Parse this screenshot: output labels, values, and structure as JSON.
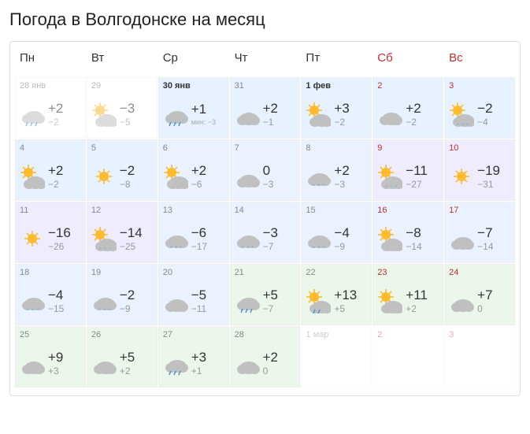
{
  "title": "Погода в Волгодонске на месяц",
  "day_headers": [
    "Пн",
    "Вт",
    "Ср",
    "Чт",
    "Пт",
    "Сб",
    "Вс"
  ],
  "days": [
    {
      "date": "28 янв",
      "icon": "rain-cloud",
      "high": "+2",
      "low": "−2",
      "tint": "tint-none",
      "past": true,
      "weekend": false,
      "bold": false,
      "note": ""
    },
    {
      "date": "29",
      "icon": "partly",
      "high": "−3",
      "low": "−5",
      "tint": "tint-none",
      "past": true,
      "weekend": false,
      "bold": false,
      "note": ""
    },
    {
      "date": "30 янв",
      "icon": "rain-cloud",
      "high": "+1",
      "low": "",
      "tint": "tint-blue1",
      "past": false,
      "weekend": false,
      "bold": true,
      "note": "мин: −3"
    },
    {
      "date": "31",
      "icon": "cloud",
      "high": "+2",
      "low": "−1",
      "tint": "tint-blue1",
      "past": false,
      "weekend": false,
      "bold": false,
      "note": ""
    },
    {
      "date": "1 фев",
      "icon": "partly",
      "high": "+3",
      "low": "−2",
      "tint": "tint-blue1",
      "past": false,
      "weekend": false,
      "bold": true,
      "note": ""
    },
    {
      "date": "2",
      "icon": "cloud",
      "high": "+2",
      "low": "−2",
      "tint": "tint-blue1",
      "past": false,
      "weekend": true,
      "bold": false,
      "note": ""
    },
    {
      "date": "3",
      "icon": "sun-snow",
      "high": "−2",
      "low": "−4",
      "tint": "tint-blue1",
      "past": false,
      "weekend": true,
      "bold": false,
      "note": ""
    },
    {
      "date": "4",
      "icon": "partly",
      "high": "+2",
      "low": "−2",
      "tint": "tint-blue1",
      "past": false,
      "weekend": false,
      "bold": false,
      "note": ""
    },
    {
      "date": "5",
      "icon": "sun",
      "high": "−2",
      "low": "−8",
      "tint": "tint-blue1",
      "past": false,
      "weekend": false,
      "bold": false,
      "note": ""
    },
    {
      "date": "6",
      "icon": "partly",
      "high": "+2",
      "low": "−6",
      "tint": "tint-blue2",
      "past": false,
      "weekend": false,
      "bold": false,
      "note": ""
    },
    {
      "date": "7",
      "icon": "cloud",
      "high": "0",
      "low": "−3",
      "tint": "tint-blue2",
      "past": false,
      "weekend": false,
      "bold": false,
      "note": ""
    },
    {
      "date": "8",
      "icon": "snow-cloud",
      "high": "+2",
      "low": "−3",
      "tint": "tint-blue2",
      "past": false,
      "weekend": false,
      "bold": false,
      "note": ""
    },
    {
      "date": "9",
      "icon": "sun-snow",
      "high": "−11",
      "low": "−27",
      "tint": "tint-lav",
      "past": false,
      "weekend": true,
      "bold": false,
      "note": ""
    },
    {
      "date": "10",
      "icon": "sun",
      "high": "−19",
      "low": "−31",
      "tint": "tint-lav",
      "past": false,
      "weekend": true,
      "bold": false,
      "note": ""
    },
    {
      "date": "11",
      "icon": "sun",
      "high": "−16",
      "low": "−26",
      "tint": "tint-lav",
      "past": false,
      "weekend": false,
      "bold": false,
      "note": ""
    },
    {
      "date": "12",
      "icon": "sun-snow",
      "high": "−14",
      "low": "−25",
      "tint": "tint-lav",
      "past": false,
      "weekend": false,
      "bold": false,
      "note": ""
    },
    {
      "date": "13",
      "icon": "snow-cloud",
      "high": "−6",
      "low": "−17",
      "tint": "tint-blue2",
      "past": false,
      "weekend": false,
      "bold": false,
      "note": ""
    },
    {
      "date": "14",
      "icon": "snow-cloud",
      "high": "−3",
      "low": "−7",
      "tint": "tint-blue2",
      "past": false,
      "weekend": false,
      "bold": false,
      "note": ""
    },
    {
      "date": "15",
      "icon": "snow-cloud",
      "high": "−4",
      "low": "−9",
      "tint": "tint-blue2",
      "past": false,
      "weekend": false,
      "bold": false,
      "note": ""
    },
    {
      "date": "16",
      "icon": "partly",
      "high": "−8",
      "low": "−14",
      "tint": "tint-blue2",
      "past": false,
      "weekend": true,
      "bold": false,
      "note": ""
    },
    {
      "date": "17",
      "icon": "cloud",
      "high": "−7",
      "low": "−14",
      "tint": "tint-blue2",
      "past": false,
      "weekend": true,
      "bold": false,
      "note": ""
    },
    {
      "date": "18",
      "icon": "snow-cloud",
      "high": "−4",
      "low": "−15",
      "tint": "tint-blue2",
      "past": false,
      "weekend": false,
      "bold": false,
      "note": ""
    },
    {
      "date": "19",
      "icon": "snow-cloud",
      "high": "−2",
      "low": "−9",
      "tint": "tint-blue2",
      "past": false,
      "weekend": false,
      "bold": false,
      "note": ""
    },
    {
      "date": "20",
      "icon": "cloud",
      "high": "−5",
      "low": "−11",
      "tint": "tint-blue2",
      "past": false,
      "weekend": false,
      "bold": false,
      "note": ""
    },
    {
      "date": "21",
      "icon": "rain-cloud",
      "high": "+5",
      "low": "−7",
      "tint": "tint-green",
      "past": false,
      "weekend": false,
      "bold": false,
      "note": ""
    },
    {
      "date": "22",
      "icon": "sun-rain",
      "high": "+13",
      "low": "+5",
      "tint": "tint-green",
      "past": false,
      "weekend": false,
      "bold": false,
      "note": ""
    },
    {
      "date": "23",
      "icon": "partly",
      "high": "+11",
      "low": "+2",
      "tint": "tint-green",
      "past": false,
      "weekend": true,
      "bold": false,
      "note": ""
    },
    {
      "date": "24",
      "icon": "cloud",
      "high": "+7",
      "low": "0",
      "tint": "tint-green",
      "past": false,
      "weekend": true,
      "bold": false,
      "note": ""
    },
    {
      "date": "25",
      "icon": "cloud",
      "high": "+9",
      "low": "+3",
      "tint": "tint-green",
      "past": false,
      "weekend": false,
      "bold": false,
      "note": ""
    },
    {
      "date": "26",
      "icon": "cloud",
      "high": "+5",
      "low": "+2",
      "tint": "tint-green",
      "past": false,
      "weekend": false,
      "bold": false,
      "note": ""
    },
    {
      "date": "27",
      "icon": "rain-cloud",
      "high": "+3",
      "low": "+1",
      "tint": "tint-green",
      "past": false,
      "weekend": false,
      "bold": false,
      "note": ""
    },
    {
      "date": "28",
      "icon": "cloud",
      "high": "+2",
      "low": "0",
      "tint": "tint-green",
      "past": false,
      "weekend": false,
      "bold": false,
      "note": ""
    },
    {
      "date": "1 мар",
      "icon": "",
      "high": "",
      "low": "",
      "tint": "tint-none",
      "past": false,
      "future": true,
      "weekend": false,
      "bold": false,
      "note": ""
    },
    {
      "date": "2",
      "icon": "",
      "high": "",
      "low": "",
      "tint": "tint-none",
      "past": false,
      "future": true,
      "weekend": true,
      "bold": false,
      "note": ""
    },
    {
      "date": "3",
      "icon": "",
      "high": "",
      "low": "",
      "tint": "tint-none",
      "past": false,
      "future": true,
      "weekend": true,
      "bold": false,
      "note": ""
    }
  ],
  "colors": {
    "weekend": "#c03030",
    "text": "#333333",
    "muted": "#999999",
    "sun": "#fdbb2d",
    "cloud": "#c0c0c0",
    "rain": "#4a90d9",
    "snow": "#6bb5e8"
  }
}
